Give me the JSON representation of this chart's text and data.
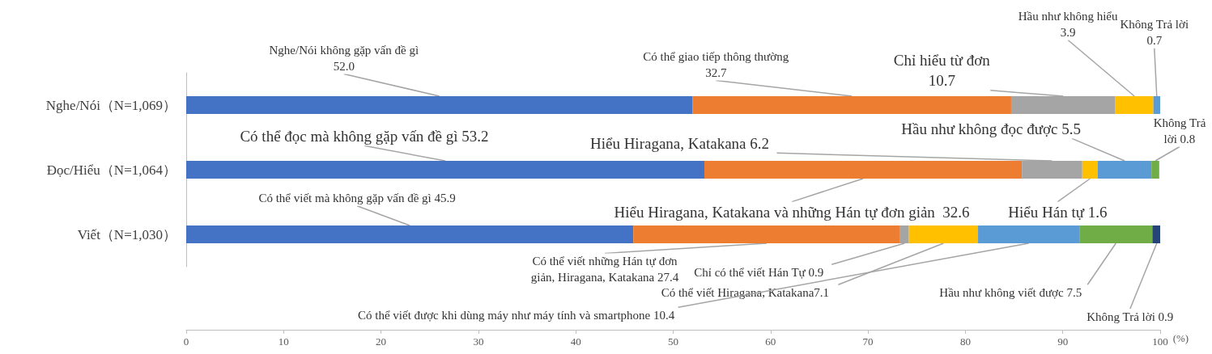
{
  "chart_data": {
    "type": "bar",
    "orientation": "horizontal",
    "stacked": true,
    "xlabel": "(%)",
    "categories": [
      "Nghe/Nói（N=1,069）",
      "Đọc/Hiểu（N=1,064）",
      "Viết（N=1,030）"
    ],
    "xlim": [
      0,
      100
    ],
    "xticks": [
      0,
      10,
      20,
      30,
      40,
      50,
      60,
      70,
      80,
      90,
      100
    ],
    "grid": false,
    "legend": false,
    "series": [
      {
        "color": "#4472c4",
        "values": [
          52.0,
          53.2,
          45.9
        ],
        "value_labels": [
          "Nghe/Nói không gặp vấn đề gì\n52.0",
          "Có thể đọc mà không gặp vấn đề gì 53.2",
          "Có thể viết mà không gặp vấn đề gì 45.9"
        ]
      },
      {
        "color": "#ed7d31",
        "values": [
          32.7,
          32.6,
          27.4
        ],
        "value_labels": [
          "Có thể giao tiếp thông thường\n32.7",
          "Hiểu Hiragana, Katakana và những Hán tự đơn giản  32.6",
          "Có thể viết những Hán tự đơn\ngiản, Hiragana, Katakana 27.4"
        ]
      },
      {
        "color": "#a5a5a5",
        "values": [
          10.7,
          6.2,
          0.9
        ],
        "value_labels": [
          "Chỉ hiểu từ đơn\n10.7",
          "Hiểu Hiragana, Katakana 6.2",
          "Chỉ có thể viết Hán Tự 0.9"
        ]
      },
      {
        "color": "#ffc000",
        "values": [
          3.9,
          1.6,
          7.1
        ],
        "value_labels": [
          "Hầu như không hiểu\n3.9",
          "Hiểu Hán tự 1.6",
          "Có thể viết Hiragana, Katakana7.1"
        ]
      },
      {
        "color": "#5b9bd5",
        "values": [
          0.7,
          5.5,
          10.4
        ],
        "value_labels": [
          "Không Trả lời\n0.7",
          "Hầu như không đọc được 5.5",
          "Có thể viết được khi dùng máy như máy tính và smartphone 10.4"
        ]
      },
      {
        "color": "#70ad47",
        "values": [
          null,
          0.8,
          7.5
        ],
        "value_labels": [
          null,
          "Không Trả\nlời 0.8",
          "Hầu như không viết được 7.5"
        ]
      },
      {
        "color": "#264478",
        "values": [
          null,
          null,
          0.9
        ],
        "value_labels": [
          null,
          null,
          "Không Trả lời 0.9"
        ]
      }
    ]
  }
}
